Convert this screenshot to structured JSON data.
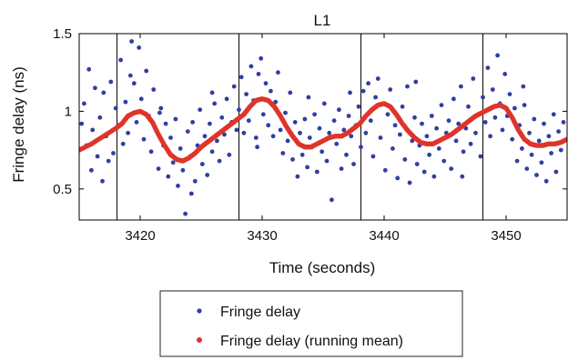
{
  "chart_data": {
    "type": "scatter",
    "title": "L1",
    "xlabel": "Time (seconds)",
    "ylabel": "Fringe delay (ns)",
    "xlim": [
      3415,
      3455
    ],
    "ylim": [
      0.3,
      1.5
    ],
    "xticks": [
      3420,
      3430,
      3440,
      3450
    ],
    "xtick_labels": [
      "3420",
      "3430",
      "3440",
      "3450"
    ],
    "yticks": [
      0.5,
      1.0,
      1.5
    ],
    "ytick_labels": [
      "0.5",
      "1",
      "1.5"
    ],
    "vertical_lines": [
      3418.1,
      3428.1,
      3438.1,
      3448.1
    ],
    "grid": false,
    "legend_position": "below",
    "colors": {
      "fringe_delay": "#2f3fa0",
      "running_mean": "#e0342b"
    },
    "series": [
      {
        "name": "Fringe delay",
        "kind": "points",
        "points": [
          [
            3415.2,
            0.92
          ],
          [
            3415.4,
            1.05
          ],
          [
            3415.6,
            0.78
          ],
          [
            3415.8,
            1.27
          ],
          [
            3416.0,
            0.62
          ],
          [
            3416.1,
            0.88
          ],
          [
            3416.3,
            1.15
          ],
          [
            3416.5,
            0.71
          ],
          [
            3416.7,
            0.96
          ],
          [
            3416.9,
            0.55
          ],
          [
            3417.0,
            1.12
          ],
          [
            3417.2,
            0.84
          ],
          [
            3417.4,
            0.68
          ],
          [
            3417.6,
            1.19
          ],
          [
            3417.8,
            0.73
          ],
          [
            3418.0,
            1.02
          ],
          [
            3418.2,
            0.91
          ],
          [
            3418.4,
            1.33
          ],
          [
            3418.6,
            0.79
          ],
          [
            3418.8,
            1.06
          ],
          [
            3419.0,
            0.86
          ],
          [
            3419.2,
            1.23
          ],
          [
            3419.3,
            1.45
          ],
          [
            3419.5,
            1.18
          ],
          [
            3419.7,
            0.93
          ],
          [
            3419.9,
            1.41
          ],
          [
            3420.1,
            1.08
          ],
          [
            3420.3,
            0.82
          ],
          [
            3420.5,
            1.26
          ],
          [
            3420.7,
            0.97
          ],
          [
            3420.9,
            0.74
          ],
          [
            3421.1,
            1.14
          ],
          [
            3421.3,
            0.88
          ],
          [
            3421.5,
            0.63
          ],
          [
            3421.7,
            1.02
          ],
          [
            3421.9,
            0.78
          ],
          [
            3422.1,
            0.92
          ],
          [
            3422.3,
            0.58
          ],
          [
            3422.5,
            0.83
          ],
          [
            3422.7,
            0.67
          ],
          [
            3422.9,
            0.95
          ],
          [
            3423.1,
            0.52
          ],
          [
            3423.3,
            0.76
          ],
          [
            3423.5,
            0.62
          ],
          [
            3423.7,
            0.34
          ],
          [
            3423.9,
            0.87
          ],
          [
            3424.1,
            0.71
          ],
          [
            3424.3,
            0.93
          ],
          [
            3424.5,
            0.55
          ],
          [
            3424.7,
            0.78
          ],
          [
            3424.9,
            1.01
          ],
          [
            3425.1,
            0.66
          ],
          [
            3425.3,
            0.84
          ],
          [
            3425.5,
            0.59
          ],
          [
            3425.7,
            0.92
          ],
          [
            3425.9,
            0.74
          ],
          [
            3426.1,
            1.05
          ],
          [
            3426.3,
            0.81
          ],
          [
            3426.5,
            0.68
          ],
          [
            3426.7,
            0.96
          ],
          [
            3426.9,
            0.85
          ],
          [
            3427.1,
            1.08
          ],
          [
            3427.3,
            0.72
          ],
          [
            3427.5,
            0.93
          ],
          [
            3427.7,
            1.16
          ],
          [
            3427.9,
            0.88
          ],
          [
            3428.1,
            1.01
          ],
          [
            3428.3,
            1.22
          ],
          [
            3428.5,
            0.86
          ],
          [
            3428.7,
            1.11
          ],
          [
            3428.9,
            0.94
          ],
          [
            3429.1,
            1.29
          ],
          [
            3429.3,
            1.07
          ],
          [
            3429.5,
            0.83
          ],
          [
            3429.7,
            1.24
          ],
          [
            3429.9,
            1.34
          ],
          [
            3430.1,
            0.98
          ],
          [
            3430.3,
            1.18
          ],
          [
            3430.5,
            0.91
          ],
          [
            3430.7,
            1.13
          ],
          [
            3430.9,
            0.84
          ],
          [
            3431.1,
            1.06
          ],
          [
            3431.3,
            1.25
          ],
          [
            3431.5,
            0.88
          ],
          [
            3431.7,
            0.73
          ],
          [
            3431.9,
            0.99
          ],
          [
            3432.1,
            0.81
          ],
          [
            3432.3,
            1.12
          ],
          [
            3432.5,
            0.69
          ],
          [
            3432.7,
            0.93
          ],
          [
            3432.9,
            0.58
          ],
          [
            3433.1,
            0.86
          ],
          [
            3433.3,
            0.72
          ],
          [
            3433.5,
            0.95
          ],
          [
            3433.7,
            0.64
          ],
          [
            3433.9,
            0.83
          ],
          [
            3434.1,
            0.77
          ],
          [
            3434.3,
            0.98
          ],
          [
            3434.5,
            0.61
          ],
          [
            3434.7,
            0.89
          ],
          [
            3434.9,
            0.74
          ],
          [
            3435.1,
            1.05
          ],
          [
            3435.3,
            0.68
          ],
          [
            3435.5,
            0.86
          ],
          [
            3435.7,
            0.43
          ],
          [
            3435.9,
            0.94
          ],
          [
            3436.1,
            0.79
          ],
          [
            3436.3,
            1.01
          ],
          [
            3436.5,
            0.63
          ],
          [
            3436.7,
            0.88
          ],
          [
            3436.9,
            0.72
          ],
          [
            3437.1,
            0.97
          ],
          [
            3437.3,
            0.84
          ],
          [
            3437.5,
            0.66
          ],
          [
            3437.7,
            0.91
          ],
          [
            3437.9,
            1.03
          ],
          [
            3438.1,
            0.77
          ],
          [
            3438.3,
            1.13
          ],
          [
            3438.5,
            0.86
          ],
          [
            3438.7,
            1.18
          ],
          [
            3438.9,
            0.94
          ],
          [
            3439.1,
            0.71
          ],
          [
            3439.3,
            1.09
          ],
          [
            3439.5,
            1.21
          ],
          [
            3439.7,
            0.83
          ],
          [
            3439.9,
            1.05
          ],
          [
            3440.1,
            0.62
          ],
          [
            3440.3,
            0.98
          ],
          [
            3440.5,
            1.14
          ],
          [
            3440.7,
            0.76
          ],
          [
            3440.9,
            0.91
          ],
          [
            3441.1,
            0.57
          ],
          [
            3441.3,
            0.85
          ],
          [
            3441.5,
            1.03
          ],
          [
            3441.7,
            0.69
          ],
          [
            3441.9,
            0.88
          ],
          [
            3442.1,
            0.54
          ],
          [
            3442.3,
            0.81
          ],
          [
            3442.5,
            0.96
          ],
          [
            3442.7,
            0.66
          ],
          [
            3442.9,
            0.78
          ],
          [
            3443.1,
            0.92
          ],
          [
            3443.3,
            0.61
          ],
          [
            3443.5,
            0.84
          ],
          [
            3443.7,
            0.72
          ],
          [
            3443.9,
            0.97
          ],
          [
            3444.1,
            0.58
          ],
          [
            3444.3,
            0.89
          ],
          [
            3444.5,
            0.76
          ],
          [
            3444.7,
            1.04
          ],
          [
            3444.9,
            0.68
          ],
          [
            3445.1,
            0.86
          ],
          [
            3445.3,
            0.94
          ],
          [
            3445.5,
            0.63
          ],
          [
            3445.7,
            1.08
          ],
          [
            3445.9,
            0.81
          ],
          [
            3446.1,
            0.92
          ],
          [
            3446.3,
            1.16
          ],
          [
            3446.5,
            0.74
          ],
          [
            3446.7,
            0.89
          ],
          [
            3446.9,
            1.03
          ],
          [
            3447.1,
            0.79
          ],
          [
            3447.3,
            1.21
          ],
          [
            3447.5,
            0.86
          ],
          [
            3447.7,
            0.98
          ],
          [
            3447.9,
            0.71
          ],
          [
            3448.1,
            1.09
          ],
          [
            3448.3,
            0.93
          ],
          [
            3448.5,
            1.28
          ],
          [
            3448.7,
            0.84
          ],
          [
            3448.9,
            1.14
          ],
          [
            3449.1,
            0.96
          ],
          [
            3449.3,
            1.36
          ],
          [
            3449.5,
            1.05
          ],
          [
            3449.7,
            0.88
          ],
          [
            3449.9,
            1.24
          ],
          [
            3450.1,
            0.97
          ],
          [
            3450.3,
            1.11
          ],
          [
            3450.5,
            0.82
          ],
          [
            3450.7,
            1.02
          ],
          [
            3450.9,
            0.68
          ],
          [
            3451.1,
            0.91
          ],
          [
            3451.3,
            0.76
          ],
          [
            3451.5,
            1.04
          ],
          [
            3451.7,
            0.63
          ],
          [
            3451.9,
            0.86
          ],
          [
            3452.1,
            0.72
          ],
          [
            3452.3,
            0.95
          ],
          [
            3452.5,
            0.59
          ],
          [
            3452.7,
            0.81
          ],
          [
            3452.9,
            0.67
          ],
          [
            3453.1,
            0.92
          ],
          [
            3453.3,
            0.55
          ],
          [
            3453.5,
            0.84
          ],
          [
            3453.7,
            0.73
          ],
          [
            3453.9,
            0.98
          ],
          [
            3454.1,
            0.61
          ],
          [
            3454.3,
            0.87
          ],
          [
            3454.5,
            0.75
          ],
          [
            3454.7,
            0.93
          ],
          [
            3421.6,
            0.99
          ],
          [
            3425.9,
            1.12
          ],
          [
            3429.6,
            0.77
          ],
          [
            3433.8,
            1.09
          ],
          [
            3437.2,
            1.12
          ],
          [
            3441.9,
            1.16
          ],
          [
            3446.4,
            0.58
          ],
          [
            3451.4,
            1.16
          ],
          [
            3424.2,
            0.47
          ],
          [
            3442.6,
            1.19
          ]
        ]
      },
      {
        "name": "Fringe delay (running mean)",
        "kind": "line-markers",
        "points": [
          [
            3415.0,
            0.75
          ],
          [
            3416.0,
            0.79
          ],
          [
            3417.0,
            0.84
          ],
          [
            3418.0,
            0.89
          ],
          [
            3418.5,
            0.92
          ],
          [
            3419.0,
            0.97
          ],
          [
            3419.5,
            0.99
          ],
          [
            3420.0,
            1.0
          ],
          [
            3420.5,
            0.98
          ],
          [
            3421.0,
            0.93
          ],
          [
            3421.5,
            0.85
          ],
          [
            3422.0,
            0.78
          ],
          [
            3422.5,
            0.72
          ],
          [
            3423.0,
            0.69
          ],
          [
            3423.5,
            0.68
          ],
          [
            3424.0,
            0.7
          ],
          [
            3424.5,
            0.73
          ],
          [
            3425.0,
            0.77
          ],
          [
            3425.5,
            0.8
          ],
          [
            3426.0,
            0.83
          ],
          [
            3426.5,
            0.86
          ],
          [
            3427.0,
            0.89
          ],
          [
            3427.5,
            0.92
          ],
          [
            3428.0,
            0.95
          ],
          [
            3428.5,
            0.98
          ],
          [
            3429.0,
            1.03
          ],
          [
            3429.5,
            1.07
          ],
          [
            3430.0,
            1.08
          ],
          [
            3430.5,
            1.07
          ],
          [
            3431.0,
            1.03
          ],
          [
            3431.5,
            0.97
          ],
          [
            3432.0,
            0.9
          ],
          [
            3432.5,
            0.84
          ],
          [
            3433.0,
            0.79
          ],
          [
            3433.5,
            0.77
          ],
          [
            3434.0,
            0.77
          ],
          [
            3434.5,
            0.79
          ],
          [
            3435.0,
            0.81
          ],
          [
            3435.5,
            0.83
          ],
          [
            3436.0,
            0.84
          ],
          [
            3436.5,
            0.84
          ],
          [
            3437.0,
            0.86
          ],
          [
            3437.5,
            0.89
          ],
          [
            3438.0,
            0.92
          ],
          [
            3438.5,
            0.97
          ],
          [
            3439.0,
            1.01
          ],
          [
            3439.5,
            1.04
          ],
          [
            3440.0,
            1.05
          ],
          [
            3440.5,
            1.03
          ],
          [
            3441.0,
            0.98
          ],
          [
            3441.5,
            0.92
          ],
          [
            3442.0,
            0.87
          ],
          [
            3442.5,
            0.83
          ],
          [
            3443.0,
            0.8
          ],
          [
            3443.5,
            0.79
          ],
          [
            3444.0,
            0.79
          ],
          [
            3444.5,
            0.81
          ],
          [
            3445.0,
            0.83
          ],
          [
            3445.5,
            0.85
          ],
          [
            3446.0,
            0.88
          ],
          [
            3446.5,
            0.91
          ],
          [
            3447.0,
            0.94
          ],
          [
            3447.5,
            0.97
          ],
          [
            3448.0,
            0.99
          ],
          [
            3448.5,
            1.01
          ],
          [
            3449.0,
            1.03
          ],
          [
            3449.5,
            1.04
          ],
          [
            3450.0,
            1.02
          ],
          [
            3450.5,
            0.96
          ],
          [
            3451.0,
            0.88
          ],
          [
            3451.5,
            0.82
          ],
          [
            3452.0,
            0.79
          ],
          [
            3452.5,
            0.78
          ],
          [
            3453.0,
            0.78
          ],
          [
            3453.5,
            0.79
          ],
          [
            3454.0,
            0.79
          ],
          [
            3454.5,
            0.8
          ],
          [
            3455.0,
            0.82
          ]
        ]
      }
    ]
  }
}
